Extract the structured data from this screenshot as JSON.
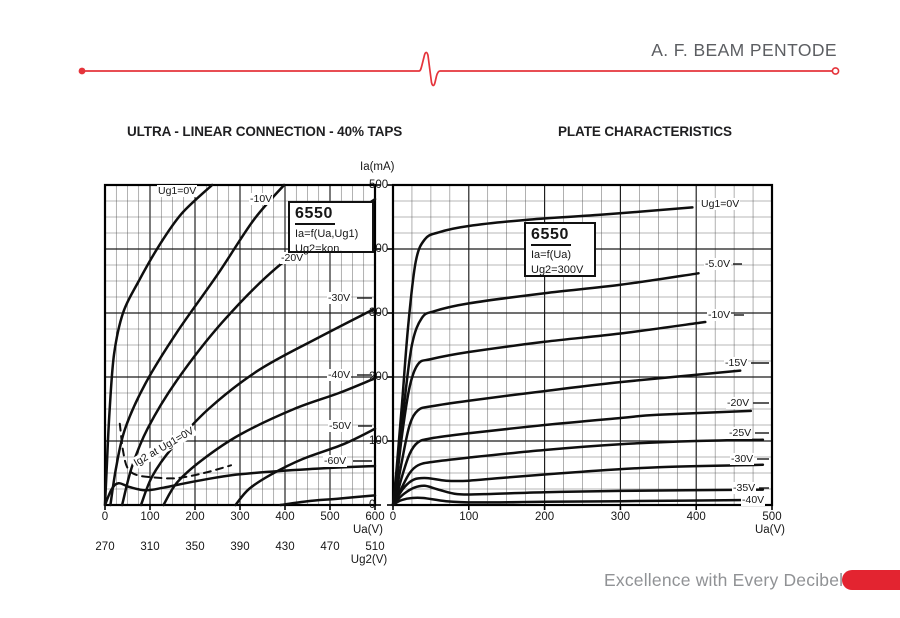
{
  "header": {
    "title": "A. F. BEAM PENTODE"
  },
  "footer": {
    "tagline": "Excellence with Every Decibel"
  },
  "colors": {
    "red_line": "#e5343b",
    "red_pill": "#e32430",
    "header_text": "#5c5e62",
    "footer_text": "#909295",
    "ink": "#161616"
  },
  "shared": {
    "y_axis_label": "Ia(mA)",
    "y_ticks": [
      "500",
      "400",
      "300",
      "200",
      "100",
      "0"
    ]
  },
  "chart_data": [
    {
      "type": "line",
      "title": "ULTRA - LINEAR CONNECTION - 40% TAPS",
      "xlabel": "Ua(V)",
      "x2label": "Ug2(V)",
      "ylabel": "Ia(mA)",
      "xlim": [
        0,
        600
      ],
      "ylim": [
        0,
        500
      ],
      "x_ticks": [
        0,
        100,
        200,
        300,
        400,
        500,
        600
      ],
      "x2_ticks": [
        270,
        310,
        350,
        390,
        430,
        470,
        510
      ],
      "grid": "major+minor, minor step 25",
      "legend": "inline curve-end labels",
      "annotation": {
        "model": "6550",
        "line1": "Ia=f(Ua,Ug1)",
        "line2": "Ug2=kon."
      },
      "series": [
        {
          "name": "Ug1=0V",
          "points": [
            [
              0,
              0
            ],
            [
              4,
              60
            ],
            [
              10,
              145
            ],
            [
              20,
              235
            ],
            [
              40,
              300
            ],
            [
              75,
              350
            ],
            [
              120,
              405
            ],
            [
              170,
              455
            ],
            [
              238,
              500
            ]
          ]
        },
        {
          "name": "-10V",
          "points": [
            [
              12,
              0
            ],
            [
              25,
              60
            ],
            [
              45,
              120
            ],
            [
              90,
              190
            ],
            [
              160,
              270
            ],
            [
              250,
              360
            ],
            [
              330,
              445
            ],
            [
              398,
              500
            ]
          ]
        },
        {
          "name": "-20V",
          "points": [
            [
              38,
              0
            ],
            [
              60,
              60
            ],
            [
              95,
              120
            ],
            [
              160,
              195
            ],
            [
              260,
              285
            ],
            [
              380,
              370
            ],
            [
              500,
              430
            ],
            [
              600,
              478
            ]
          ]
        },
        {
          "name": "-30V",
          "points": [
            [
              80,
              0
            ],
            [
              105,
              45
            ],
            [
              150,
              90
            ],
            [
              230,
              150
            ],
            [
              340,
              210
            ],
            [
              470,
              260
            ],
            [
              600,
              307
            ]
          ]
        },
        {
          "name": "-40V",
          "points": [
            [
              130,
              0
            ],
            [
              160,
              35
            ],
            [
              215,
              70
            ],
            [
              300,
              110
            ],
            [
              420,
              150
            ],
            [
              520,
              175
            ],
            [
              600,
              198
            ]
          ]
        },
        {
          "name": "-50V",
          "points": [
            [
              290,
              0
            ],
            [
              320,
              25
            ],
            [
              370,
              48
            ],
            [
              440,
              72
            ],
            [
              530,
              95
            ],
            [
              600,
              119
            ]
          ]
        },
        {
          "name": "-60V",
          "points": [
            [
              0,
              0
            ],
            [
              15,
              25
            ],
            [
              30,
              34
            ],
            [
              55,
              28
            ],
            [
              90,
              23
            ],
            [
              130,
              27
            ],
            [
              200,
              37
            ],
            [
              300,
              48
            ],
            [
              450,
              56
            ],
            [
              600,
              61
            ]
          ]
        },
        {
          "name": "",
          "points": [
            [
              390,
              0
            ],
            [
              450,
              6
            ],
            [
              520,
              10
            ],
            [
              600,
              15
            ]
          ]
        },
        {
          "name": "Ig2 at Ug1=0V",
          "style": "dashed",
          "points": [
            [
              33,
              127
            ],
            [
              40,
              85
            ],
            [
              50,
              58
            ],
            [
              70,
              47
            ],
            [
              110,
              43
            ],
            [
              160,
              42
            ],
            [
              220,
              50
            ],
            [
              280,
              62
            ]
          ]
        }
      ]
    },
    {
      "type": "line",
      "title": "PLATE CHARACTERISTICS",
      "xlabel": "Ua(V)",
      "ylabel": "Ia(mA)",
      "xlim": [
        0,
        500
      ],
      "ylim": [
        0,
        500
      ],
      "x_ticks": [
        0,
        100,
        200,
        300,
        400,
        500
      ],
      "grid": "major+minor, minor step 25",
      "legend": "inline curve-end labels",
      "annotation": {
        "model": "6550",
        "line1": "Ia=f(Ua)",
        "line2": "Ug2=300V"
      },
      "series": [
        {
          "name": "Ug1=0V",
          "points": [
            [
              0,
              0
            ],
            [
              5,
              60
            ],
            [
              12,
              160
            ],
            [
              20,
              280
            ],
            [
              30,
              380
            ],
            [
              42,
              415
            ],
            [
              60,
              426
            ],
            [
              100,
              436
            ],
            [
              180,
              446
            ],
            [
              280,
              454
            ],
            [
              395,
              465
            ]
          ]
        },
        {
          "name": "-5.0V",
          "points": [
            [
              0,
              0
            ],
            [
              6,
              60
            ],
            [
              14,
              150
            ],
            [
              25,
              250
            ],
            [
              38,
              292
            ],
            [
              55,
              303
            ],
            [
              100,
              315
            ],
            [
              200,
              331
            ],
            [
              300,
              344
            ],
            [
              403,
              362
            ]
          ]
        },
        {
          "name": "-10V",
          "points": [
            [
              0,
              0
            ],
            [
              5,
              40
            ],
            [
              12,
              110
            ],
            [
              22,
              185
            ],
            [
              33,
              220
            ],
            [
              50,
              228
            ],
            [
              100,
              239
            ],
            [
              200,
              255
            ],
            [
              300,
              268
            ],
            [
              412,
              286
            ]
          ]
        },
        {
          "name": "-15V",
          "points": [
            [
              0,
              0
            ],
            [
              5,
              25
            ],
            [
              12,
              70
            ],
            [
              22,
              125
            ],
            [
              33,
              148
            ],
            [
              50,
              154
            ],
            [
              100,
              163
            ],
            [
              200,
              178
            ],
            [
              300,
              192
            ],
            [
              458,
              210
            ]
          ]
        },
        {
          "name": "-20V",
          "points": [
            [
              0,
              0
            ],
            [
              5,
              15
            ],
            [
              12,
              45
            ],
            [
              22,
              80
            ],
            [
              33,
              98
            ],
            [
              50,
              104
            ],
            [
              100,
              112
            ],
            [
              200,
              125
            ],
            [
              300,
              136
            ],
            [
              350,
              141
            ],
            [
              472,
              147
            ]
          ]
        },
        {
          "name": "-25V",
          "points": [
            [
              0,
              0
            ],
            [
              5,
              10
            ],
            [
              12,
              28
            ],
            [
              22,
              50
            ],
            [
              33,
              62
            ],
            [
              50,
              67
            ],
            [
              100,
              74
            ],
            [
              200,
              86
            ],
            [
              300,
              95
            ],
            [
              400,
              100
            ],
            [
              488,
              102
            ]
          ]
        },
        {
          "name": "-30V",
          "points": [
            [
              0,
              0
            ],
            [
              6,
              12
            ],
            [
              15,
              28
            ],
            [
              28,
              40
            ],
            [
              45,
              42
            ],
            [
              70,
              38
            ],
            [
              100,
              38
            ],
            [
              150,
              43
            ],
            [
              250,
              52
            ],
            [
              350,
              59
            ],
            [
              488,
              63
            ]
          ]
        },
        {
          "name": "-35V",
          "points": [
            [
              0,
              0
            ],
            [
              6,
              8
            ],
            [
              15,
              18
            ],
            [
              28,
              27
            ],
            [
              42,
              30
            ],
            [
              60,
              24
            ],
            [
              85,
              17
            ],
            [
              120,
              17
            ],
            [
              200,
              20
            ],
            [
              300,
              22
            ],
            [
              488,
              24
            ]
          ]
        },
        {
          "name": "-40V",
          "points": [
            [
              0,
              0
            ],
            [
              5,
              4
            ],
            [
              12,
              8
            ],
            [
              25,
              11
            ],
            [
              40,
              11
            ],
            [
              70,
              6
            ],
            [
              110,
              4
            ],
            [
              200,
              5
            ],
            [
              300,
              6
            ],
            [
              488,
              8
            ]
          ]
        }
      ]
    }
  ]
}
